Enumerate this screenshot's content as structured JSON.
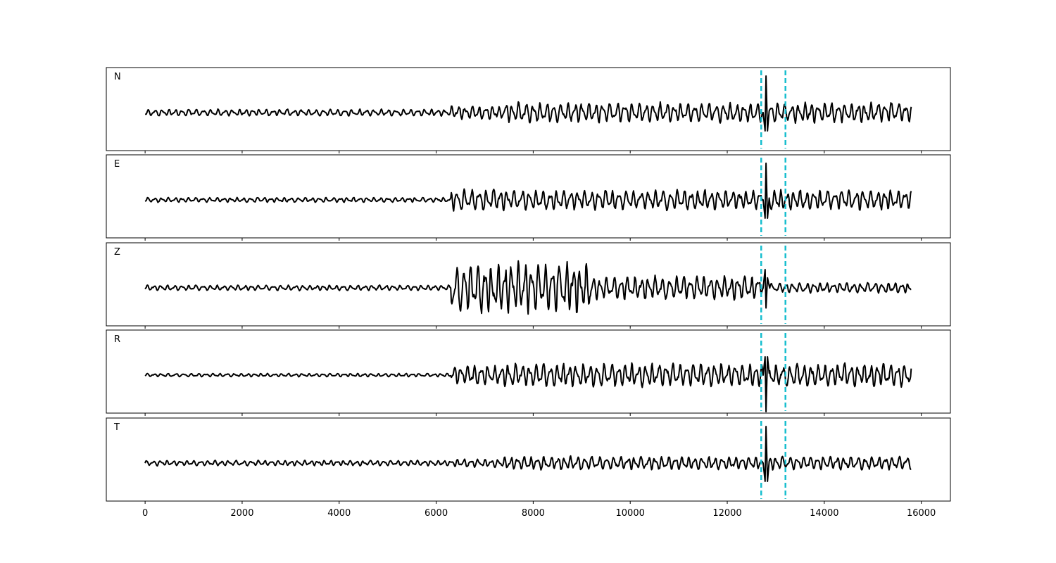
{
  "chart_data": {
    "type": "line",
    "x_range": [
      0,
      15800
    ],
    "xlim": [
      -800,
      16600
    ],
    "x_ticks": [
      0,
      2000,
      4000,
      6000,
      8000,
      10000,
      12000,
      14000,
      16000
    ],
    "x_tick_labels": [
      "0",
      "2000",
      "4000",
      "6000",
      "8000",
      "10000",
      "12000",
      "14000",
      "16000"
    ],
    "shared_x_axis": true,
    "y_ticks_visible": false,
    "grid": false,
    "legend": "none",
    "trace_color": "#000000",
    "marker_color": "#17becf",
    "vertical_markers": [
      12700,
      13200
    ],
    "arrival_spike_x": 12800,
    "series": [
      {
        "name": "N",
        "spike_direction": "up",
        "segments": [
          {
            "x_start": 0,
            "x_end": 6300,
            "amplitude": 0.1
          },
          {
            "x_start": 6300,
            "x_end": 7400,
            "amplitude": 0.2
          },
          {
            "x_start": 7400,
            "x_end": 12700,
            "amplitude": 0.3
          },
          {
            "x_start": 12700,
            "x_end": 15800,
            "amplitude": 0.3
          }
        ],
        "spike_amplitude": 1.0
      },
      {
        "name": "E",
        "spike_direction": "up",
        "segments": [
          {
            "x_start": 0,
            "x_end": 6300,
            "amplitude": 0.07
          },
          {
            "x_start": 6300,
            "x_end": 7400,
            "amplitude": 0.33
          },
          {
            "x_start": 7400,
            "x_end": 12700,
            "amplitude": 0.3
          },
          {
            "x_start": 12700,
            "x_end": 15800,
            "amplitude": 0.3
          }
        ],
        "spike_amplitude": 1.0
      },
      {
        "name": "Z",
        "spike_direction": "down",
        "segments": [
          {
            "x_start": 0,
            "x_end": 6300,
            "amplitude": 0.08
          },
          {
            "x_start": 6300,
            "x_end": 9200,
            "amplitude": 0.75
          },
          {
            "x_start": 9200,
            "x_end": 12700,
            "amplitude": 0.35
          },
          {
            "x_start": 12700,
            "x_end": 15800,
            "amplitude": 0.15
          }
        ],
        "spike_amplitude": 0.55
      },
      {
        "name": "R",
        "spike_direction": "down",
        "segments": [
          {
            "x_start": 0,
            "x_end": 6300,
            "amplitude": 0.05
          },
          {
            "x_start": 6300,
            "x_end": 7400,
            "amplitude": 0.3
          },
          {
            "x_start": 7400,
            "x_end": 12700,
            "amplitude": 0.35
          },
          {
            "x_start": 12700,
            "x_end": 15800,
            "amplitude": 0.35
          }
        ],
        "spike_amplitude": 1.0
      },
      {
        "name": "T",
        "spike_direction": "up",
        "segments": [
          {
            "x_start": 0,
            "x_end": 6300,
            "amplitude": 0.08
          },
          {
            "x_start": 6300,
            "x_end": 7400,
            "amplitude": 0.12
          },
          {
            "x_start": 7400,
            "x_end": 12700,
            "amplitude": 0.2
          },
          {
            "x_start": 12700,
            "x_end": 15800,
            "amplitude": 0.2
          }
        ],
        "spike_amplitude": 1.0
      }
    ]
  }
}
